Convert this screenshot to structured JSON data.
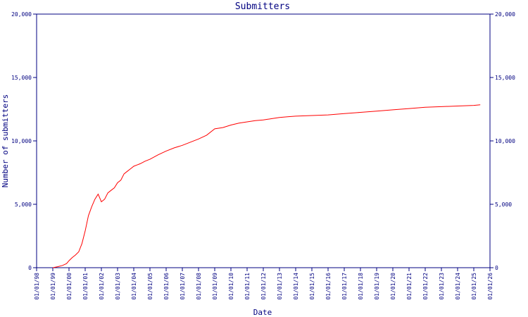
{
  "chart_data": {
    "type": "line",
    "title": "Submitters",
    "xlabel": "Date",
    "ylabel": "Number of submitters",
    "x_tick_labels": [
      "01/01/98",
      "01/01/99",
      "01/01/00",
      "01/01/01",
      "01/01/02",
      "01/01/03",
      "01/01/04",
      "01/01/05",
      "01/01/06",
      "01/01/07",
      "01/01/08",
      "01/01/09",
      "01/01/10",
      "01/01/11",
      "01/01/12",
      "01/01/13",
      "01/01/14",
      "01/01/15",
      "01/01/16",
      "01/01/17",
      "01/01/18",
      "01/01/19",
      "01/01/20",
      "01/01/21",
      "01/01/22",
      "01/01/23",
      "01/01/24",
      "01/01/25",
      "01/01/26"
    ],
    "y_ticks": [
      0,
      5000,
      10000,
      15000,
      20000
    ],
    "y_tick_labels_left": [
      "0",
      "5,000",
      "10,000",
      "15,000",
      "20,000"
    ],
    "y_tick_labels_right": [
      "0",
      "5,000",
      "10,000",
      "15,000",
      "20,000"
    ],
    "ylim": [
      0,
      20000
    ],
    "xlim": [
      1998.0,
      2026.0
    ],
    "grid": false,
    "colors": {
      "axis": "#000080",
      "line": "#ff0000",
      "background": "#ffffff"
    },
    "series": [
      {
        "x": [
          1999.0,
          1999.3,
          1999.6,
          1999.85,
          2000.0,
          2000.2,
          2000.4,
          2000.6,
          2000.8,
          2001.0,
          2001.2,
          2001.4,
          2001.6,
          2001.8,
          2002.0,
          2002.1,
          2002.2,
          2002.4,
          2002.6,
          2002.8,
          2003.0,
          2003.2,
          2003.4,
          2003.6,
          2003.8,
          2004.0,
          2004.2,
          2004.4,
          2004.7,
          2005.0,
          2005.5,
          2006.0,
          2006.5,
          2007.0,
          2007.5,
          2008.0,
          2008.5,
          2009.0,
          2009.5,
          2010.0,
          2010.5,
          2011.0,
          2011.5,
          2012.0,
          2012.5,
          2013.0,
          2013.5,
          2014.0,
          2015.0,
          2016.0,
          2017.0,
          2018.0,
          2019.0,
          2020.0,
          2021.0,
          2022.0,
          2023.0,
          2024.0,
          2025.0,
          2025.4
        ],
        "y": [
          0,
          80,
          180,
          320,
          550,
          800,
          1000,
          1250,
          1900,
          2900,
          4100,
          4800,
          5400,
          5800,
          5200,
          5300,
          5400,
          5900,
          6100,
          6300,
          6700,
          6900,
          7400,
          7600,
          7800,
          8000,
          8100,
          8200,
          8400,
          8550,
          8900,
          9200,
          9450,
          9650,
          9900,
          10150,
          10450,
          10950,
          11050,
          11250,
          11400,
          11500,
          11600,
          11650,
          11750,
          11850,
          11900,
          11950,
          12000,
          12050,
          12150,
          12250,
          12350,
          12450,
          12550,
          12650,
          12700,
          12750,
          12800,
          12850
        ]
      }
    ]
  }
}
